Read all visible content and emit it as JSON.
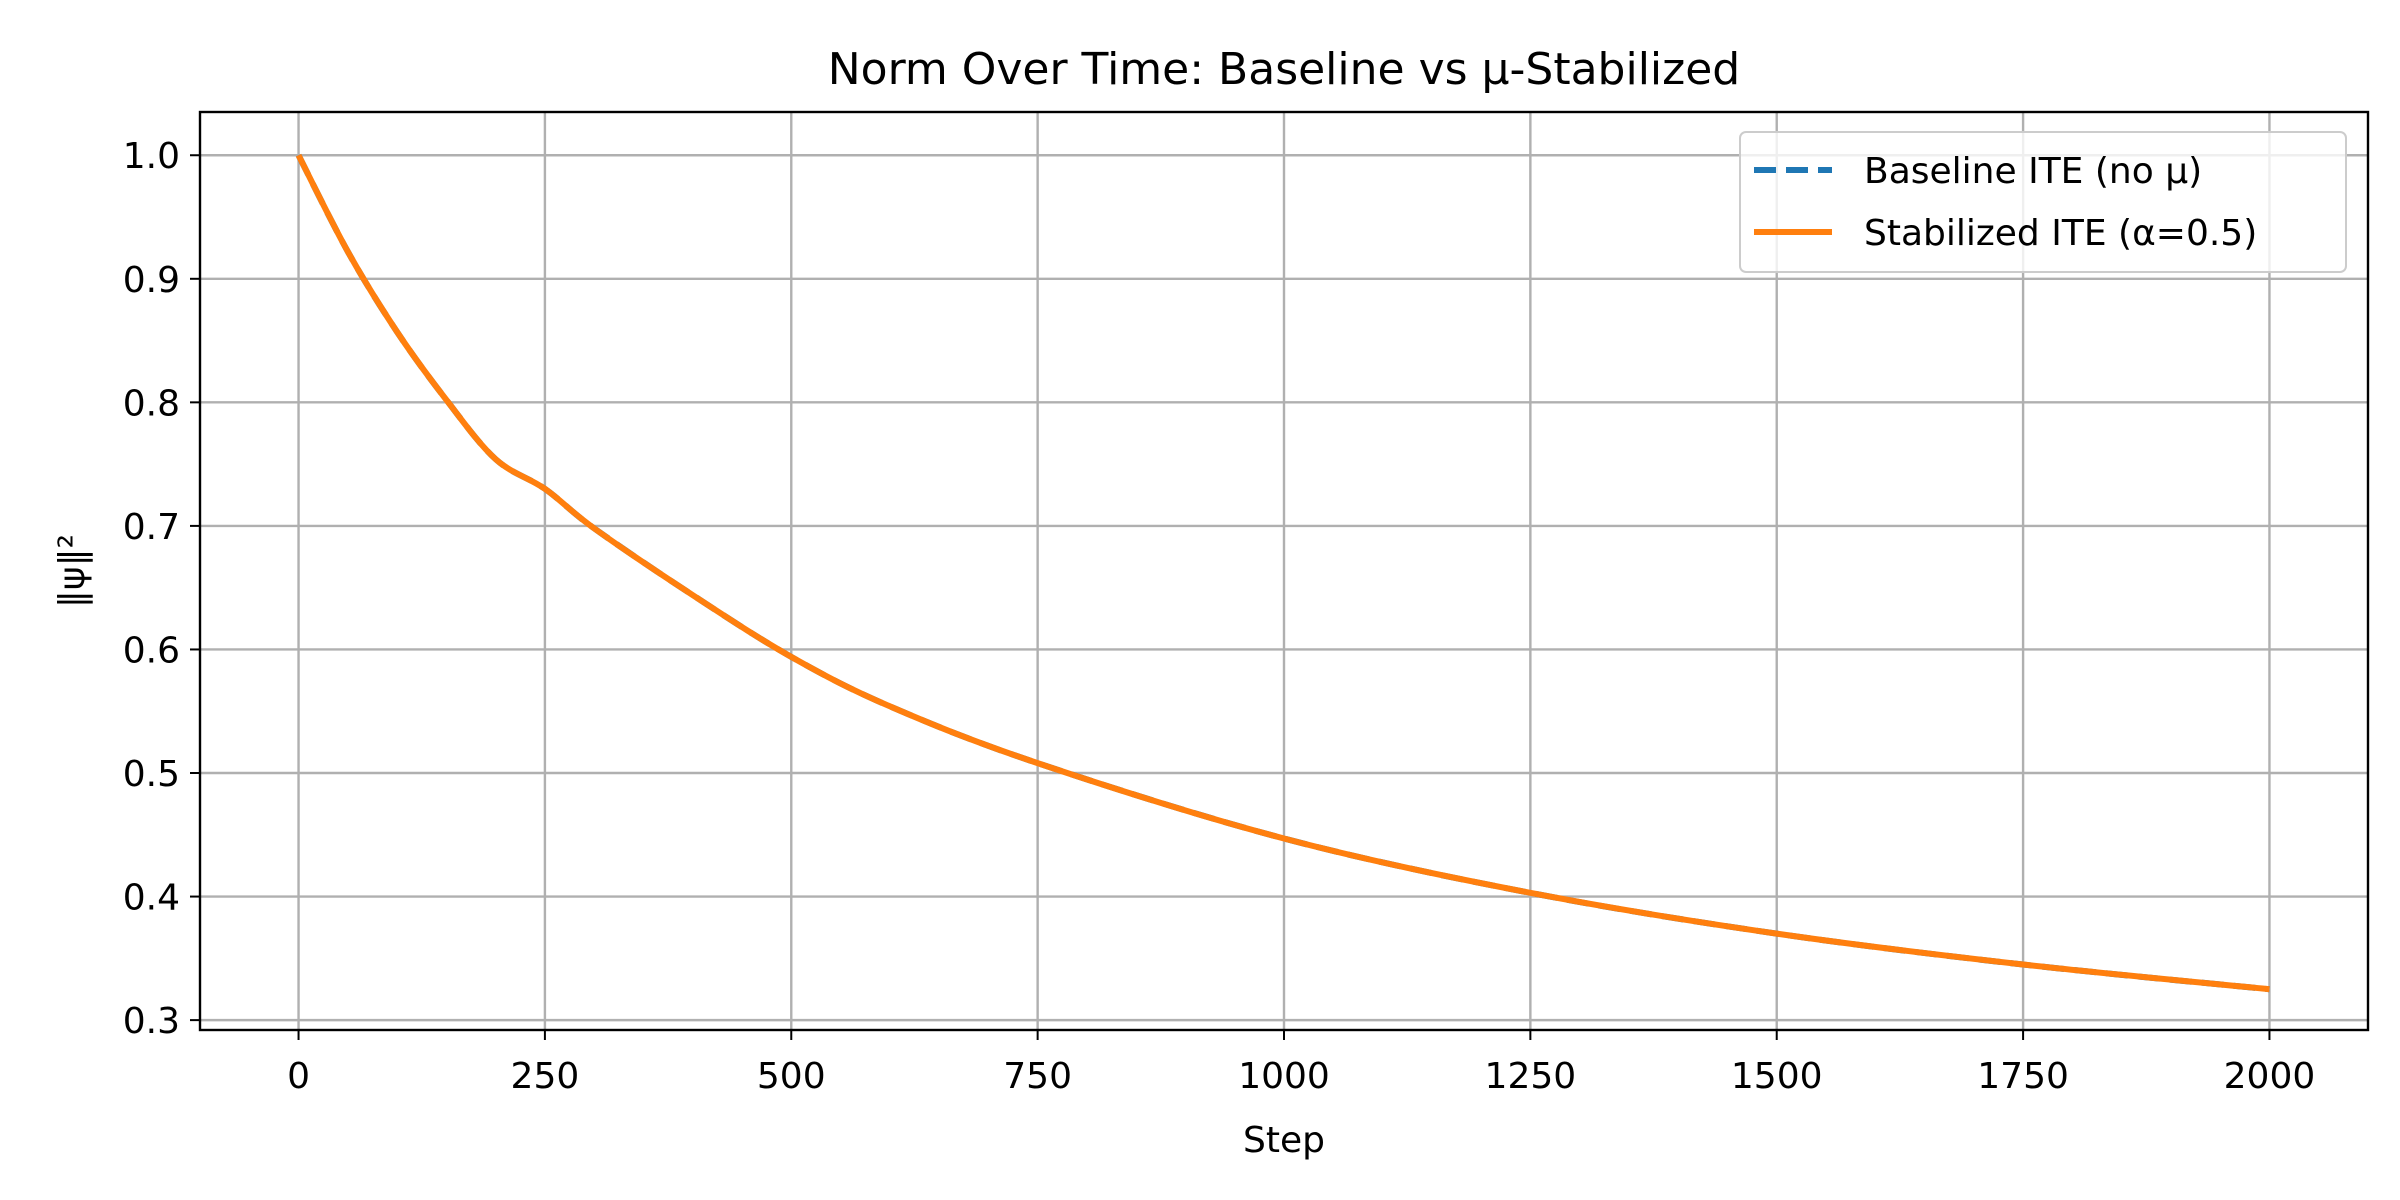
{
  "chart_data": {
    "type": "line",
    "title": "Norm Over Time: Baseline vs μ-Stabilized",
    "xlabel": "Step",
    "ylabel": "‖ψ‖²",
    "xlim": [
      -100,
      2100
    ],
    "ylim": [
      0.292,
      1.035
    ],
    "xticks": [
      0,
      250,
      500,
      750,
      1000,
      1250,
      1500,
      1750,
      2000
    ],
    "xtick_labels": [
      "0",
      "250",
      "500",
      "750",
      "1000",
      "1250",
      "1500",
      "1750",
      "2000"
    ],
    "yticks": [
      0.3,
      0.4,
      0.5,
      0.6,
      0.7,
      0.8,
      0.9,
      1.0
    ],
    "ytick_labels": [
      "0.3",
      "0.4",
      "0.5",
      "0.6",
      "0.7",
      "0.8",
      "0.9",
      "1.0"
    ],
    "grid": true,
    "legend_position": "top-right",
    "x": [
      0,
      50,
      100,
      150,
      200,
      250,
      300,
      400,
      500,
      600,
      750,
      1000,
      1250,
      1500,
      1750,
      2000
    ],
    "series": [
      {
        "name": "Baseline ITE (no μ)",
        "color": "#1f77b4",
        "style": "dashed",
        "values": [
          1.0,
          0.922,
          0.857,
          0.802,
          0.754,
          0.73,
          0.698,
          0.644,
          0.594,
          0.554,
          0.508,
          0.447,
          0.403,
          0.37,
          0.345,
          0.325
        ]
      },
      {
        "name": "Stabilized ITE (α=0.5)",
        "color": "#ff7f0e",
        "style": "solid",
        "values": [
          1.0,
          0.922,
          0.857,
          0.802,
          0.754,
          0.73,
          0.698,
          0.644,
          0.594,
          0.554,
          0.508,
          0.447,
          0.403,
          0.37,
          0.345,
          0.325
        ]
      }
    ]
  }
}
